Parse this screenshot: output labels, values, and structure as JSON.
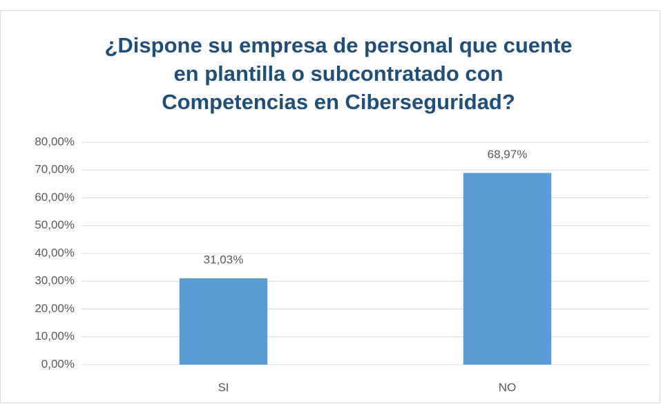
{
  "chart_data": {
    "type": "bar",
    "title": [
      "¿Dispone su empresa de personal que cuente",
      "en plantilla o subcontratado con",
      "Competencias en Ciberseguridad?"
    ],
    "categories": [
      "SI",
      "NO"
    ],
    "values": [
      31.03,
      68.97
    ],
    "value_labels": [
      "31,03%",
      "68,97%"
    ],
    "color": "#5b9bd5",
    "ylim": [
      0,
      80
    ],
    "yticks": [
      {
        "value": 0,
        "label": "0,00%"
      },
      {
        "value": 10,
        "label": "10,00%"
      },
      {
        "value": 20,
        "label": "20,00%"
      },
      {
        "value": 30,
        "label": "30,00%"
      },
      {
        "value": 40,
        "label": "40,00%"
      },
      {
        "value": 50,
        "label": "50,00%"
      },
      {
        "value": 60,
        "label": "60,00%"
      },
      {
        "value": 70,
        "label": "70,00%"
      },
      {
        "value": 80,
        "label": "80,00%"
      }
    ],
    "grid": true
  }
}
